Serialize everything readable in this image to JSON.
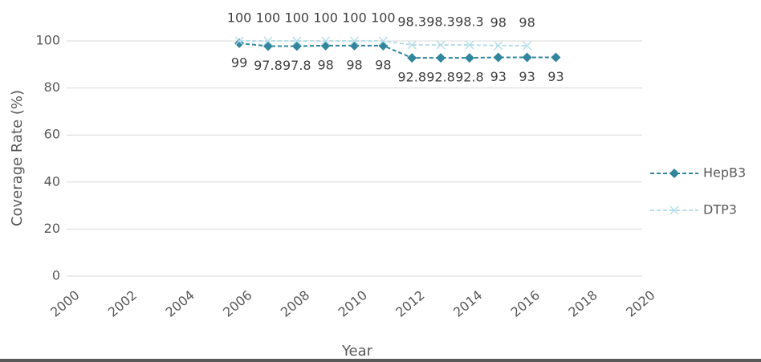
{
  "chart_data": {
    "type": "line",
    "x_label": "Year",
    "y_label": "Coverage Rate (%)",
    "x": [
      2006,
      2007,
      2008,
      2009,
      2010,
      2011,
      2012,
      2013,
      2014,
      2015,
      2016,
      2017
    ],
    "series": [
      {
        "name": "HepB3",
        "color": "#31859c",
        "marker": "diamond",
        "values": [
          99,
          97.8,
          97.8,
          98,
          98,
          98,
          92.8,
          92.8,
          92.8,
          93,
          93,
          93
        ]
      },
      {
        "name": "DTP3",
        "color": "#b7dee8",
        "marker": "x",
        "values": [
          100,
          100,
          100,
          100,
          100,
          100,
          98.3,
          98.3,
          98.3,
          98,
          98,
          null
        ]
      }
    ],
    "xlim": [
      2000,
      2020
    ],
    "xticks": [
      2000,
      2002,
      2004,
      2006,
      2008,
      2010,
      2012,
      2014,
      2016,
      2018,
      2020
    ],
    "ylim": [
      0,
      100
    ],
    "yticks": [
      0,
      20,
      40,
      60,
      80,
      100
    ],
    "grid": true,
    "legend": "right"
  }
}
